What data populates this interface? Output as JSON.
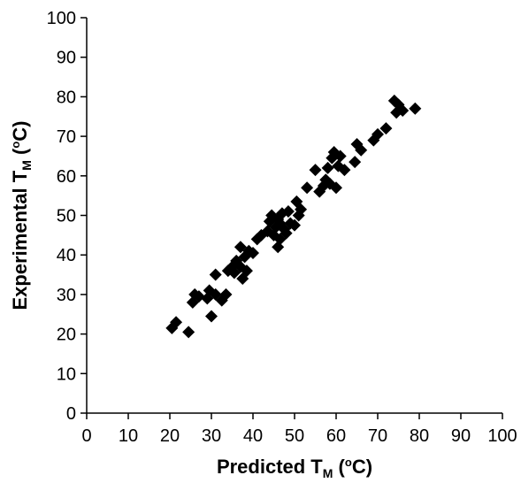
{
  "chart_data": {
    "type": "scatter",
    "title": "",
    "xlabel": {
      "prefix": "Predicted T",
      "sub": "M",
      "open": " (",
      "sup": "o",
      "unit": "C)"
    },
    "ylabel": {
      "prefix": "Experimental T",
      "sub": "M",
      "open": " (",
      "sup": "o",
      "unit": "C)"
    },
    "xlim": [
      0,
      100
    ],
    "ylim": [
      0,
      100
    ],
    "x_ticks": [
      0,
      10,
      20,
      30,
      40,
      50,
      60,
      70,
      80,
      90,
      100
    ],
    "y_ticks": [
      0,
      10,
      20,
      30,
      40,
      50,
      60,
      70,
      80,
      90,
      100
    ],
    "grid": false,
    "legend": "none",
    "marker": "diamond",
    "marker_color": "#000000",
    "series": [
      {
        "points": [
          [
            20.5,
            21.5
          ],
          [
            21.5,
            23
          ],
          [
            24.5,
            20.5
          ],
          [
            25.5,
            28
          ],
          [
            26,
            30
          ],
          [
            27,
            29.5
          ],
          [
            29,
            29
          ],
          [
            29.5,
            31
          ],
          [
            30,
            24.5
          ],
          [
            31,
            30
          ],
          [
            31,
            35
          ],
          [
            32.5,
            28.5
          ],
          [
            33.5,
            30
          ],
          [
            34,
            36
          ],
          [
            35,
            37
          ],
          [
            35.5,
            35.5
          ],
          [
            36,
            38.5
          ],
          [
            37,
            37
          ],
          [
            37,
            42
          ],
          [
            37.5,
            34
          ],
          [
            38,
            39.5
          ],
          [
            38.5,
            36
          ],
          [
            39,
            41
          ],
          [
            40,
            40.5
          ],
          [
            41,
            44
          ],
          [
            42,
            45
          ],
          [
            43.5,
            46
          ],
          [
            44,
            48.5
          ],
          [
            44.5,
            50
          ],
          [
            45,
            45
          ],
          [
            45.5,
            47
          ],
          [
            46,
            42
          ],
          [
            46,
            49
          ],
          [
            46.5,
            44
          ],
          [
            46.5,
            48
          ],
          [
            47,
            50.5
          ],
          [
            47.5,
            46.5
          ],
          [
            48,
            45.5
          ],
          [
            48.5,
            51
          ],
          [
            49,
            48
          ],
          [
            50,
            47.5
          ],
          [
            50.5,
            53.5
          ],
          [
            51,
            50
          ],
          [
            51.5,
            51.5
          ],
          [
            53,
            57
          ],
          [
            55,
            61.5
          ],
          [
            56,
            56
          ],
          [
            57,
            57.5
          ],
          [
            57.5,
            59
          ],
          [
            58,
            62
          ],
          [
            58.5,
            58
          ],
          [
            59,
            64.5
          ],
          [
            59.5,
            66
          ],
          [
            60,
            57
          ],
          [
            60.5,
            62.5
          ],
          [
            61,
            65
          ],
          [
            62,
            61.5
          ],
          [
            64.5,
            63.5
          ],
          [
            65,
            68
          ],
          [
            66,
            66.5
          ],
          [
            69,
            69
          ],
          [
            70,
            70.5
          ],
          [
            72,
            72
          ],
          [
            74,
            79
          ],
          [
            74.5,
            76
          ],
          [
            75,
            78
          ],
          [
            76,
            76.5
          ],
          [
            79,
            77
          ]
        ]
      }
    ]
  }
}
